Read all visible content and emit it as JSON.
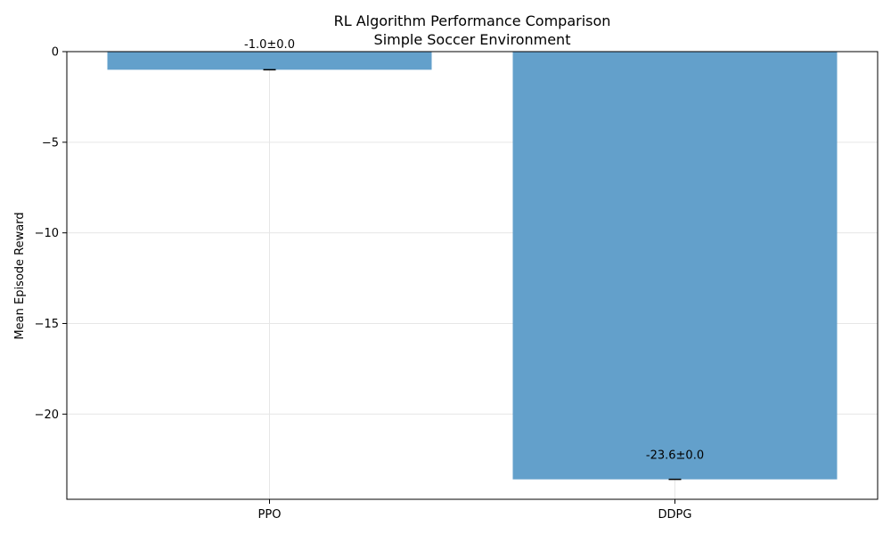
{
  "chart_data": {
    "type": "bar",
    "title": "RL Algorithm Performance Comparison",
    "subtitle": "Simple Soccer Environment",
    "xlabel": "",
    "ylabel": "Mean Episode Reward",
    "categories": [
      "PPO",
      "DDPG"
    ],
    "values": [
      -1.0,
      -23.6
    ],
    "errors": [
      0.0,
      0.0
    ],
    "data_labels": [
      "-1.0±0.0",
      "-23.6±0.0"
    ],
    "ylim": [
      -24.7,
      0
    ],
    "yticks": [
      0,
      -5,
      -10,
      -15,
      -20
    ],
    "ytick_labels": [
      "0",
      "−5",
      "−10",
      "−15",
      "−20"
    ],
    "grid": true,
    "bar_color": "#63a0cb",
    "error_color": "#000000"
  }
}
